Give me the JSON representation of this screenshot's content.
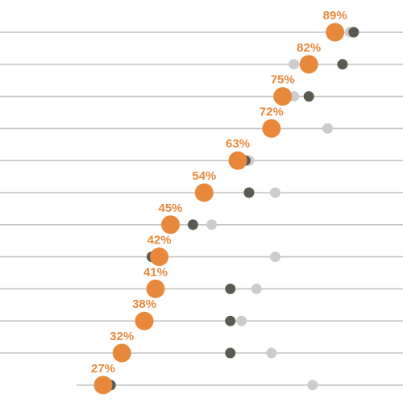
{
  "chart_data": {
    "type": "scatter",
    "title": "",
    "xlabel": "",
    "ylabel": "",
    "grid": "horizontal",
    "x_axis_visible": false,
    "xlim": [
      0,
      100
    ],
    "colors": {
      "primary": "#e8883a",
      "dark": "#5c5852",
      "light": "#cccccc",
      "gridline": "#c4c4c4"
    },
    "rows": [
      {
        "label": "89%",
        "primary": 89,
        "dark": 94,
        "light": 93
      },
      {
        "label": "82%",
        "primary": 82,
        "dark": 91,
        "light": 78
      },
      {
        "label": "75%",
        "primary": 75,
        "dark": 82,
        "light": 78
      },
      {
        "label": "72%",
        "primary": 72,
        "dark": 73,
        "light": 87
      },
      {
        "label": "63%",
        "primary": 63,
        "dark": 65,
        "light": 66
      },
      {
        "label": "54%",
        "primary": 54,
        "dark": 66,
        "light": 73
      },
      {
        "label": "45%",
        "primary": 45,
        "dark": 51,
        "light": 56
      },
      {
        "label": "42%",
        "primary": 42,
        "dark": 40,
        "light": 73
      },
      {
        "label": "41%",
        "primary": 41,
        "dark": 61,
        "light": 68
      },
      {
        "label": "38%",
        "primary": 38,
        "dark": 61,
        "light": 64
      },
      {
        "label": "32%",
        "primary": 32,
        "dark": 61,
        "light": 72
      },
      {
        "label": "27%",
        "primary": 27,
        "dark": 29,
        "light": 83
      }
    ]
  }
}
